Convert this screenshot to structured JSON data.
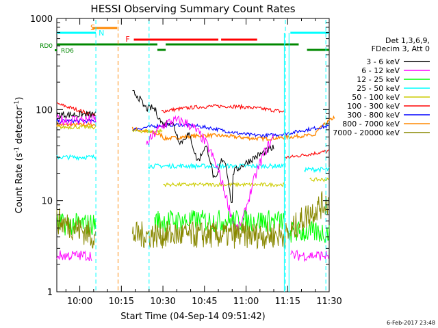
{
  "chart_data": {
    "type": "line",
    "title": "HESSI Observing Summary Count Rates",
    "xlabel": "Start Time (04-Sep-14 09:51:42)",
    "ylabel_parts": [
      "Count Rate (s",
      "-1",
      " detector",
      "-1",
      ")"
    ],
    "yscale": "log",
    "ylim": [
      1,
      1000
    ],
    "xlim_min": [
      -8.3,
      90
    ],
    "x_ticks": [
      {
        "min": 0,
        "label": "10:00"
      },
      {
        "min": 15,
        "label": "10:15"
      },
      {
        "min": 30,
        "label": "10:30"
      },
      {
        "min": 45,
        "label": "10:45"
      },
      {
        "min": 60,
        "label": "11:00"
      },
      {
        "min": 75,
        "label": "11:15"
      },
      {
        "min": 90,
        "label": "11:30"
      }
    ],
    "y_ticks": [
      {
        "v": 1,
        "label": "1"
      },
      {
        "v": 10,
        "label": "10"
      },
      {
        "v": 100,
        "label": "100"
      },
      {
        "v": 1000,
        "label": "1000"
      }
    ],
    "legend_header": [
      "Det 1,3,6,9,",
      "FDecim 3, Att 0"
    ],
    "legend_position": "right",
    "series": [
      {
        "name": "3 - 6 keV",
        "color": "#000000"
      },
      {
        "name": "6 - 12 keV",
        "color": "#ff00ff"
      },
      {
        "name": "12 - 25 keV",
        "color": "#00ff00"
      },
      {
        "name": "25 - 50 keV",
        "color": "#00ffff"
      },
      {
        "name": "50 - 100 keV",
        "color": "#cccc00"
      },
      {
        "name": "100 - 300 keV",
        "color": "#ff0000"
      },
      {
        "name": "300 - 800 keV",
        "color": "#0000ff"
      },
      {
        "name": "800 - 7000 keV",
        "color": "#ff8800"
      },
      {
        "name": "7000 - 20000 keV",
        "color": "#888800"
      }
    ],
    "flags": [
      {
        "label": "S",
        "color": "#ff8800"
      },
      {
        "label": "N",
        "color": "#00ffff"
      },
      {
        "label": "F",
        "color": "#ff0000"
      },
      {
        "label": "RD0",
        "color": "#008800"
      },
      {
        "label": "RD6",
        "color": "#008800"
      }
    ],
    "footer_date": "6-Feb-2017 23:48"
  }
}
